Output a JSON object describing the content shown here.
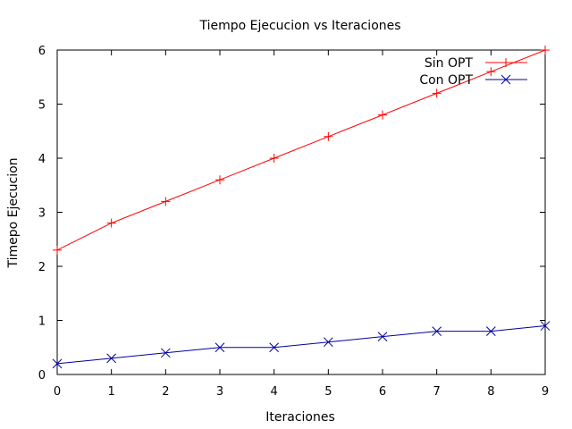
{
  "chart_data": {
    "type": "line",
    "title": "Tiempo Ejecucion vs Iteraciones",
    "xlabel": "Iteraciones",
    "ylabel": "Timepo Ejecucion",
    "xlim": [
      0,
      9
    ],
    "ylim": [
      0,
      6
    ],
    "x_ticks": [
      0,
      1,
      2,
      3,
      4,
      5,
      6,
      7,
      8,
      9
    ],
    "y_ticks": [
      0,
      1,
      2,
      3,
      4,
      5,
      6
    ],
    "grid": false,
    "legend_position": "top-right",
    "x": [
      0,
      1,
      2,
      3,
      4,
      5,
      6,
      7,
      8,
      9
    ],
    "series": [
      {
        "name": "Sin OPT",
        "color": "#ff0000",
        "marker": "plus",
        "values": [
          2.3,
          2.8,
          3.2,
          3.6,
          4.0,
          4.4,
          4.8,
          5.2,
          5.6,
          6.0
        ]
      },
      {
        "name": "Con OPT",
        "color": "#0000a0",
        "marker": "cross",
        "values": [
          0.2,
          0.3,
          0.4,
          0.5,
          0.5,
          0.6,
          0.7,
          0.8,
          0.8,
          0.9
        ]
      }
    ]
  }
}
